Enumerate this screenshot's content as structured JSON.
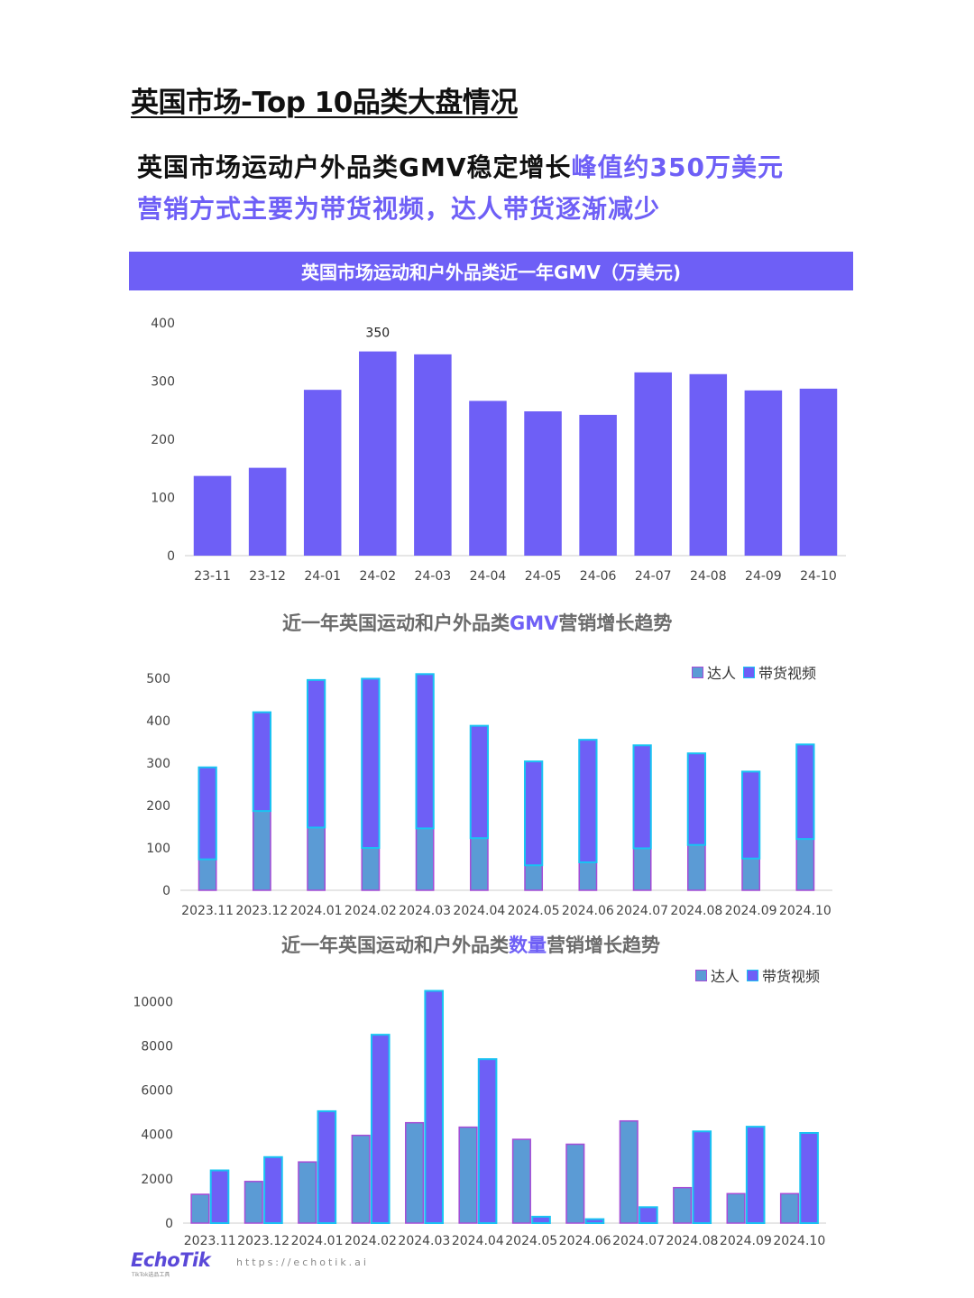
{
  "page_title": "英国市场-Top 10品类大盘情况",
  "headline": {
    "line1_plain": "英国市场运动户外品类GMV稳定增长",
    "line1_accent": "峰值约350万美元",
    "line2_accent": "营销方式主要为带货视频，达人带货逐渐减少"
  },
  "colors": {
    "accent": "#6e5ff6",
    "bar_primary": "#6e5ff6",
    "bar_secondary": "#5b9bd5",
    "bar_outline": "#19c3f2"
  },
  "footer": {
    "logo": "EchoTik",
    "logo_sub": "TikTok选品工具",
    "url": "https://echotik.ai"
  },
  "chart_data": [
    {
      "type": "bar",
      "title": "英国市场运动和户外品类近一年GMV（万美元)",
      "categories": [
        "23-11",
        "23-12",
        "24-01",
        "24-02",
        "24-03",
        "24-04",
        "24-05",
        "24-06",
        "24-07",
        "24-08",
        "24-09",
        "24-10"
      ],
      "values": [
        137,
        151,
        285,
        351,
        346,
        266,
        248,
        242,
        315,
        312,
        284,
        287
      ],
      "annotations": [
        {
          "category": "24-02",
          "label": "350"
        }
      ],
      "ylim": [
        0,
        400
      ],
      "yticks": [
        0,
        100,
        200,
        300,
        400
      ],
      "grid": false
    },
    {
      "type": "bar",
      "stacked": true,
      "title_parts": [
        "近一年英国运动和户外品类",
        "GMV",
        "营销增长趋势"
      ],
      "categories": [
        "2023.11",
        "2023.12",
        "2024.01",
        "2024.02",
        "2024.03",
        "2024.04",
        "2024.05",
        "2024.06",
        "2024.07",
        "2024.08",
        "2024.09",
        "2024.10"
      ],
      "series": [
        {
          "name": "达人",
          "values": [
            73,
            187,
            148,
            100,
            146,
            123,
            59,
            66,
            99,
            107,
            75,
            121
          ]
        },
        {
          "name": "带货视频",
          "values": [
            217,
            233,
            348,
            399,
            364,
            265,
            245,
            289,
            243,
            216,
            205,
            223
          ]
        }
      ],
      "ylim": [
        0,
        500
      ],
      "yticks": [
        0,
        100,
        200,
        300,
        400,
        500
      ],
      "legend": "top-right",
      "grid": false
    },
    {
      "type": "bar",
      "title_parts": [
        "近一年英国运动和户外品类",
        "数量",
        "营销增长趋势"
      ],
      "categories": [
        "2023.11",
        "2023.12",
        "2024.01",
        "2024.02",
        "2024.03",
        "2024.04",
        "2024.05",
        "2024.06",
        "2024.07",
        "2024.08",
        "2024.09",
        "2024.10"
      ],
      "series": [
        {
          "name": "达人",
          "values": [
            1300,
            1880,
            2760,
            3960,
            4530,
            4330,
            3780,
            3560,
            4610,
            1600,
            1330,
            1330
          ]
        },
        {
          "name": "带货视频",
          "values": [
            2380,
            2980,
            5050,
            8500,
            10480,
            7400,
            290,
            180,
            720,
            4140,
            4350,
            4070
          ]
        }
      ],
      "ylim": [
        0,
        10500
      ],
      "yticks": [
        0,
        2000,
        4000,
        6000,
        8000,
        10000
      ],
      "legend": "top-right",
      "grid": false
    }
  ]
}
